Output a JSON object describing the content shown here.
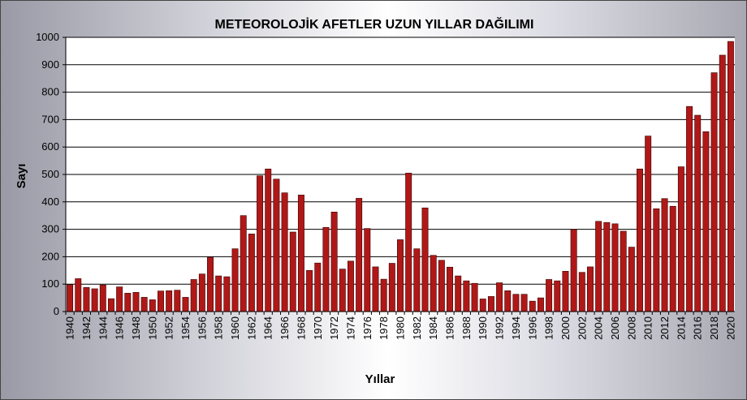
{
  "chart_data": {
    "type": "bar",
    "title": "METEOROLOJİK AFETLER UZUN YILLAR DAĞILIMI",
    "xlabel": "Yıllar",
    "ylabel": "Sayı",
    "ylim": [
      0,
      1000
    ],
    "yticks": [
      0,
      100,
      200,
      300,
      400,
      500,
      600,
      700,
      800,
      900,
      1000
    ],
    "grid": true,
    "legend": "none",
    "bar_color": "#b01818",
    "categories": [
      1940,
      1941,
      1942,
      1943,
      1944,
      1945,
      1946,
      1947,
      1948,
      1949,
      1950,
      1951,
      1952,
      1953,
      1954,
      1955,
      1956,
      1957,
      1958,
      1959,
      1960,
      1961,
      1962,
      1963,
      1964,
      1965,
      1966,
      1967,
      1968,
      1969,
      1970,
      1971,
      1972,
      1973,
      1974,
      1975,
      1976,
      1977,
      1978,
      1979,
      1980,
      1981,
      1982,
      1983,
      1984,
      1985,
      1986,
      1987,
      1988,
      1989,
      1990,
      1991,
      1992,
      1993,
      1994,
      1995,
      1996,
      1997,
      1998,
      1999,
      2000,
      2001,
      2002,
      2003,
      2004,
      2005,
      2006,
      2007,
      2008,
      2009,
      2010,
      2011,
      2012,
      2013,
      2014,
      2015,
      2016,
      2017,
      2018,
      2019,
      2020
    ],
    "values": [
      98,
      120,
      88,
      83,
      97,
      47,
      90,
      67,
      70,
      52,
      43,
      75,
      76,
      78,
      52,
      117,
      137,
      198,
      130,
      127,
      229,
      350,
      283,
      495,
      520,
      483,
      433,
      290,
      425,
      150,
      177,
      307,
      363,
      155,
      184,
      413,
      303,
      163,
      118,
      176,
      262,
      505,
      229,
      378,
      205,
      187,
      162,
      130,
      112,
      103,
      46,
      55,
      105,
      76,
      63,
      63,
      38,
      50,
      117,
      112,
      147,
      299,
      143,
      163,
      329,
      325,
      320,
      293,
      235,
      520,
      640,
      375,
      412,
      384,
      528,
      748,
      716,
      656,
      871,
      935,
      985
    ]
  }
}
